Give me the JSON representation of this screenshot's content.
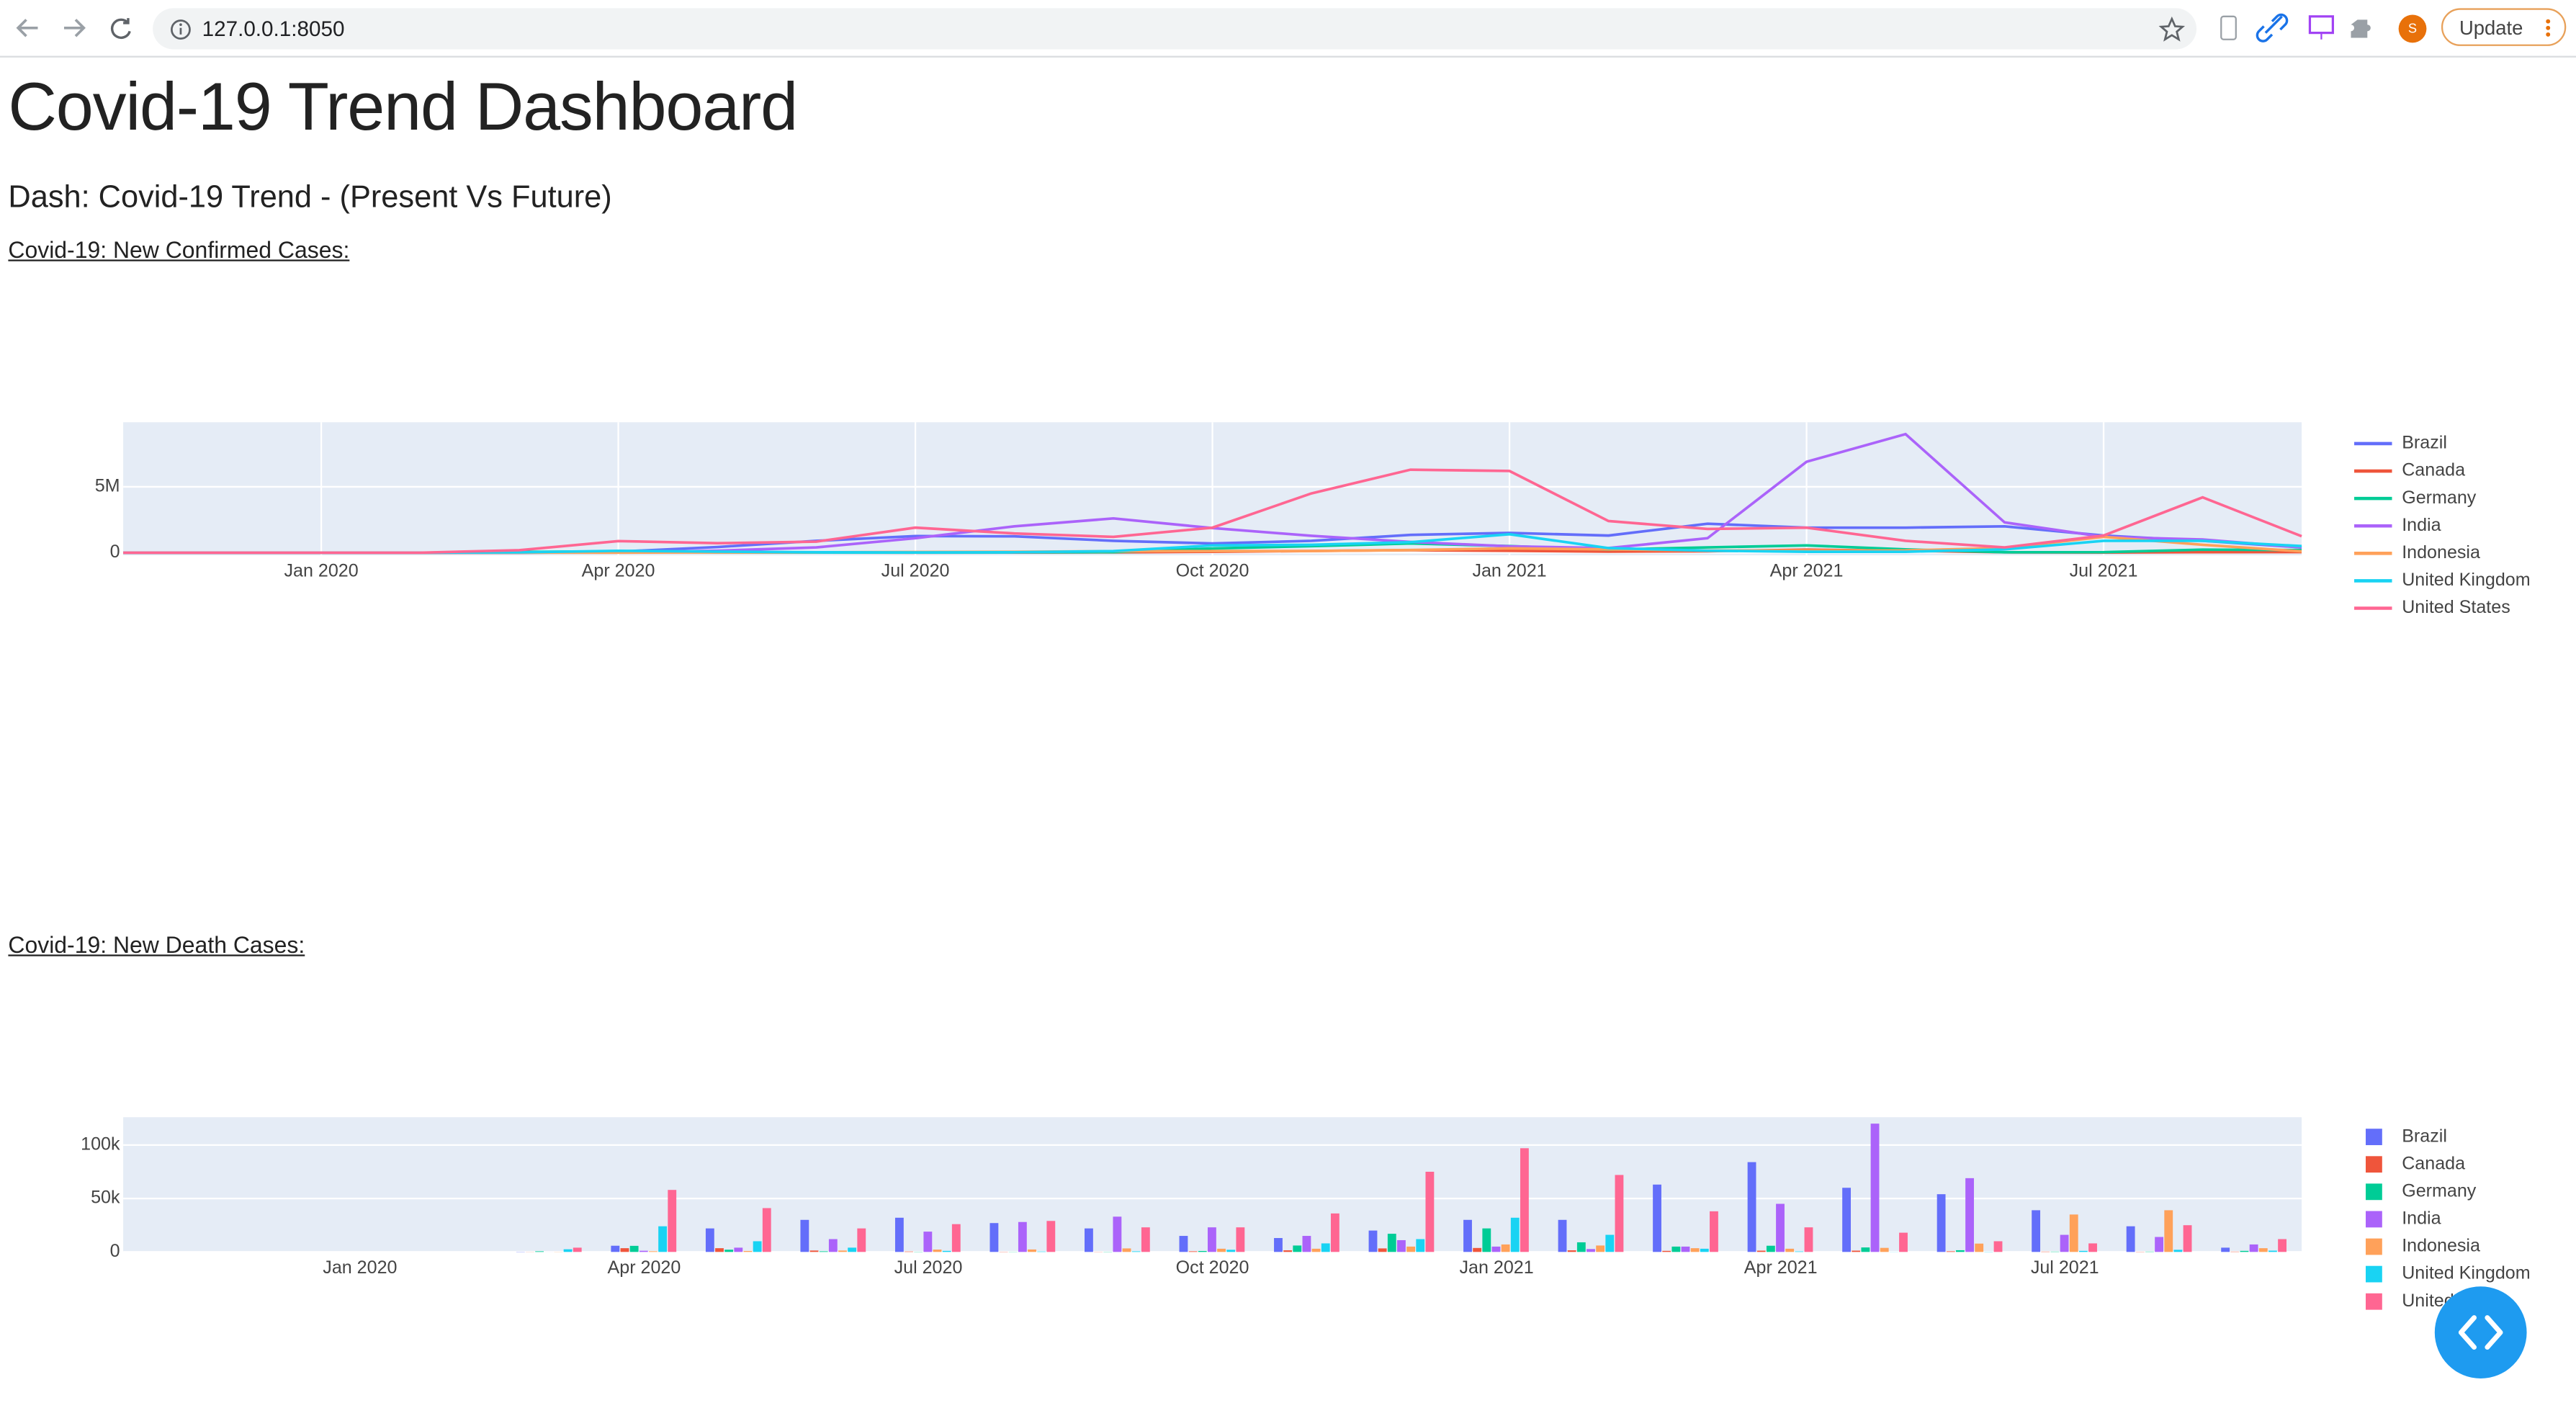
{
  "browser": {
    "url": "127.0.0.1:8050",
    "update_button": "Update",
    "avatar": "S"
  },
  "header": {
    "title": "Covid-19 Trend Dashboard",
    "subtitle": "Dash: Covid-19 Trend - (Present Vs Future)"
  },
  "chart_data": [
    {
      "type": "line",
      "title": "Covid-19: New Confirmed Cases:",
      "x": [
        "2019-11",
        "2019-12",
        "2020-01",
        "2020-02",
        "2020-03",
        "2020-04",
        "2020-05",
        "2020-06",
        "2020-07",
        "2020-08",
        "2020-09",
        "2020-10",
        "2020-11",
        "2020-12",
        "2021-01",
        "2021-02",
        "2021-03",
        "2021-04",
        "2021-05",
        "2021-06",
        "2021-07",
        "2021-08",
        "2021-09"
      ],
      "xlim": [
        "2019-11",
        "2021-09"
      ],
      "xticks": [
        {
          "value": "2020-01",
          "label": "Jan 2020"
        },
        {
          "value": "2020-04",
          "label": "Apr 2020"
        },
        {
          "value": "2020-07",
          "label": "Jul 2020"
        },
        {
          "value": "2020-10",
          "label": "Oct 2020"
        },
        {
          "value": "2021-01",
          "label": "Jan 2021"
        },
        {
          "value": "2021-04",
          "label": "Apr 2021"
        },
        {
          "value": "2021-07",
          "label": "Jul 2021"
        }
      ],
      "ylim": [
        -200000,
        9900000
      ],
      "yticks": [
        0,
        {
          "value": 5000000,
          "label": "5M"
        }
      ],
      "grid": true,
      "legend": "right",
      "series": [
        {
          "name": "Brazil",
          "color": "#636efa",
          "values": [
            0,
            0,
            0,
            0,
            5000,
            80000,
            430000,
            900000,
            1260000,
            1240000,
            900000,
            700000,
            900000,
            1350000,
            1500000,
            1300000,
            2200000,
            1900000,
            1900000,
            2000000,
            1300000,
            900000,
            400000
          ]
        },
        {
          "name": "Canada",
          "color": "#EF553B",
          "values": [
            0,
            0,
            0,
            0,
            8000,
            45000,
            40000,
            12000,
            9000,
            11000,
            25000,
            70000,
            130000,
            190000,
            140000,
            80000,
            110000,
            230000,
            150000,
            30000,
            12000,
            40000,
            50000
          ]
        },
        {
          "name": "Germany",
          "color": "#00cc96",
          "values": [
            0,
            0,
            0,
            0,
            60000,
            100000,
            20000,
            15000,
            15000,
            30000,
            40000,
            320000,
            500000,
            700000,
            500000,
            230000,
            400000,
            550000,
            250000,
            30000,
            40000,
            230000,
            200000
          ]
        },
        {
          "name": "India",
          "color": "#ab63fa",
          "values": [
            0,
            0,
            0,
            1,
            1400,
            33000,
            150000,
            400000,
            1100000,
            2000000,
            2600000,
            1870000,
            1280000,
            820000,
            480000,
            350000,
            1100000,
            6900000,
            9000000,
            2300000,
            1200000,
            1000000,
            400000
          ]
        },
        {
          "name": "Indonesia",
          "color": "#FFA15A",
          "values": [
            0,
            0,
            0,
            0,
            1500,
            8500,
            16000,
            29000,
            50000,
            66000,
            112000,
            123000,
            128000,
            200000,
            330000,
            250000,
            160000,
            160000,
            170000,
            360000,
            1200000,
            600000,
            100000
          ]
        },
        {
          "name": "United Kingdom",
          "color": "#19d3f3",
          "values": [
            0,
            0,
            0,
            20,
            25000,
            140000,
            80000,
            30000,
            20000,
            30000,
            120000,
            550000,
            600000,
            800000,
            1400000,
            350000,
            150000,
            70000,
            70000,
            250000,
            900000,
            900000,
            500000
          ]
        },
        {
          "name": "United States",
          "color": "#FF6692",
          "values": [
            0,
            0,
            7,
            20,
            190000,
            880000,
            720000,
            840000,
            1900000,
            1460000,
            1200000,
            1900000,
            4500000,
            6300000,
            6200000,
            2400000,
            1800000,
            1900000,
            900000,
            400000,
            1300000,
            4200000,
            1250000
          ]
        }
      ]
    },
    {
      "type": "bar",
      "title": "Covid-19: New Death Cases:",
      "categories": [
        "2019-11",
        "2019-12",
        "2020-01",
        "2020-02",
        "2020-03",
        "2020-04",
        "2020-05",
        "2020-06",
        "2020-07",
        "2020-08",
        "2020-09",
        "2020-10",
        "2020-11",
        "2020-12",
        "2021-01",
        "2021-02",
        "2021-03",
        "2021-04",
        "2021-05",
        "2021-06",
        "2021-07",
        "2021-08",
        "2021-09"
      ],
      "xticks": [
        {
          "value": "2020-01",
          "label": "Jan 2020"
        },
        {
          "value": "2020-04",
          "label": "Apr 2020"
        },
        {
          "value": "2020-07",
          "label": "Jul 2020"
        },
        {
          "value": "2020-10",
          "label": "Oct 2020"
        },
        {
          "value": "2021-01",
          "label": "Jan 2021"
        },
        {
          "value": "2021-04",
          "label": "Apr 2021"
        },
        {
          "value": "2021-07",
          "label": "Jul 2021"
        }
      ],
      "ylim": [
        0,
        126000
      ],
      "yticks": [
        0,
        {
          "value": 50000,
          "label": "50k"
        },
        {
          "value": 100000,
          "label": "100k"
        }
      ],
      "grid": true,
      "legend": "right",
      "series": [
        {
          "name": "Brazil",
          "color": "#636efa",
          "values": [
            0,
            0,
            0,
            0,
            200,
            5800,
            22000,
            30000,
            32000,
            27000,
            22000,
            15000,
            13000,
            20000,
            30000,
            30000,
            63000,
            84000,
            60000,
            54000,
            39000,
            24000,
            4000
          ]
        },
        {
          "name": "Canada",
          "color": "#EF553B",
          "values": [
            0,
            0,
            0,
            0,
            100,
            3500,
            3500,
            1300,
            400,
            200,
            150,
            600,
            1500,
            3300,
            3700,
            1500,
            1000,
            1200,
            1200,
            600,
            300,
            200,
            300
          ]
        },
        {
          "name": "Germany",
          "color": "#00cc96",
          "values": [
            0,
            0,
            0,
            0,
            600,
            5700,
            2100,
            600,
            200,
            150,
            200,
            900,
            6000,
            17000,
            22000,
            9000,
            5000,
            5800,
            4200,
            1600,
            300,
            300,
            1000
          ]
        },
        {
          "name": "India",
          "color": "#ab63fa",
          "values": [
            0,
            0,
            0,
            0,
            30,
            1100,
            4000,
            12000,
            19000,
            28000,
            33000,
            23000,
            15000,
            11000,
            5000,
            2700,
            5000,
            45000,
            120000,
            69000,
            16000,
            14000,
            7000
          ]
        },
        {
          "name": "Indonesia",
          "color": "#FFA15A",
          "values": [
            0,
            0,
            0,
            0,
            140,
            650,
            900,
            1300,
            2200,
            2300,
            3300,
            3000,
            3000,
            5000,
            7000,
            6000,
            3500,
            3000,
            3800,
            7800,
            35000,
            39000,
            3500
          ]
        },
        {
          "name": "United Kingdom",
          "color": "#19d3f3",
          "values": [
            0,
            0,
            0,
            0,
            2500,
            24000,
            10000,
            4000,
            1000,
            400,
            600,
            2000,
            8000,
            12000,
            32000,
            16000,
            3000,
            500,
            100,
            200,
            1000,
            2000,
            1200
          ]
        },
        {
          "name": "United States",
          "color": "#FF6692",
          "values": [
            0,
            0,
            0,
            10,
            4000,
            58000,
            41000,
            22000,
            26000,
            29000,
            23000,
            23000,
            36000,
            75000,
            97000,
            72000,
            38000,
            23000,
            18000,
            10000,
            8000,
            25000,
            12000
          ]
        }
      ]
    }
  ]
}
